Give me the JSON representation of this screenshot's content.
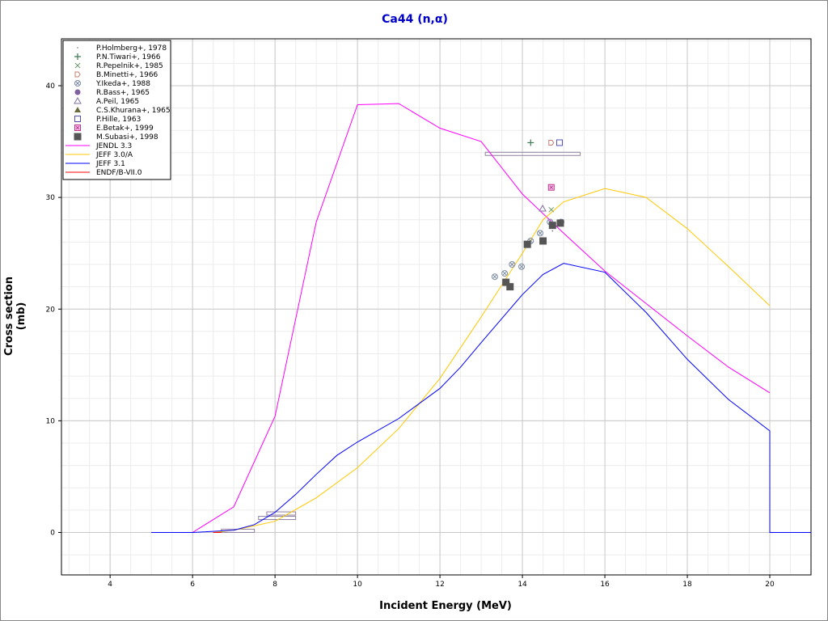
{
  "chart_data": {
    "type": "scatter",
    "title": "Ca44 (n,α)",
    "xlabel": "Incident Energy (MeV)",
    "ylabel": "Cross section (mb)",
    "xlim": [
      2.82,
      21.0
    ],
    "ylim": [
      -3.8,
      44.2
    ],
    "xticks": [
      4,
      6,
      8,
      10,
      12,
      14,
      16,
      18,
      20
    ],
    "yticks": [
      0,
      10,
      20,
      30,
      40
    ],
    "grid": true,
    "legend_position": "top-left",
    "series": [
      {
        "name": "P.Holmberg+, 1978",
        "kind": "points",
        "marker": "dot",
        "color": "#6a6a6a",
        "points": [
          [
            14.73,
            27.0
          ]
        ]
      },
      {
        "name": "P.N.Tiwari+, 1966",
        "kind": "points",
        "marker": "plus",
        "color": "#3a7a50",
        "points": [
          [
            14.2,
            34.9
          ]
        ]
      },
      {
        "name": "R.Pepelnik+, 1985",
        "kind": "points",
        "marker": "x",
        "color": "#6a9a6a",
        "points": [
          [
            14.7,
            28.9
          ]
        ]
      },
      {
        "name": "B.Minetti+, 1966",
        "kind": "points",
        "marker": "pentagon",
        "color": "#c08070",
        "points": [
          [
            14.7,
            34.9
          ]
        ]
      },
      {
        "name": "Y.Ikeda+, 1988",
        "kind": "points",
        "marker": "circlex",
        "color": "#7a8aa0",
        "points": [
          [
            13.33,
            22.9
          ],
          [
            13.57,
            23.2
          ],
          [
            13.75,
            24.0
          ],
          [
            13.98,
            23.8
          ],
          [
            14.2,
            26.1
          ],
          [
            14.43,
            26.8
          ],
          [
            14.67,
            27.8
          ],
          [
            14.94,
            27.8
          ]
        ]
      },
      {
        "name": "R.Bass+, 1965",
        "kind": "points",
        "marker": "filledcircle",
        "color": "#8060a0",
        "points": []
      },
      {
        "name": "A.Peil, 1965",
        "kind": "points",
        "marker": "triangle",
        "color": "#8070a0",
        "points": [
          [
            14.49,
            29.0
          ]
        ]
      },
      {
        "name": "C.S.Khurana+, 1965",
        "kind": "points",
        "marker": "filledtriangle",
        "color": "#6a6a3a",
        "points": []
      },
      {
        "name": "P.Hille, 1963",
        "kind": "points",
        "marker": "square",
        "color": "#5050b0",
        "points": [
          [
            14.9,
            34.9
          ]
        ]
      },
      {
        "name": "E.Betak+, 1999",
        "kind": "points",
        "marker": "squarex",
        "color": "#c03090",
        "points": [
          [
            14.7,
            30.9
          ]
        ]
      },
      {
        "name": "M.Subasi+, 1998",
        "kind": "points",
        "marker": "filledsquare",
        "color": "#555555",
        "points": [
          [
            13.6,
            22.4
          ],
          [
            13.7,
            22.0
          ],
          [
            14.12,
            25.8
          ],
          [
            14.5,
            26.1
          ],
          [
            14.73,
            27.5
          ],
          [
            14.92,
            27.7
          ]
        ]
      },
      {
        "name": "JENDL 3.3",
        "kind": "line",
        "color": "#ff00ff",
        "points": [
          [
            5,
            0
          ],
          [
            6,
            0
          ],
          [
            7,
            2.3
          ],
          [
            8,
            10.4
          ],
          [
            9,
            27.8
          ],
          [
            10,
            38.3
          ],
          [
            11,
            38.4
          ],
          [
            12,
            36.2
          ],
          [
            13,
            35.0
          ],
          [
            14,
            30.3
          ],
          [
            15,
            26.8
          ],
          [
            16,
            23.4
          ],
          [
            17,
            20.5
          ],
          [
            18,
            17.6
          ],
          [
            19,
            14.8
          ],
          [
            20,
            12.5
          ]
        ]
      },
      {
        "name": "JEFF 3.0/A",
        "kind": "line",
        "color": "#ffc800",
        "points": [
          [
            6.5,
            0
          ],
          [
            7,
            0.2
          ],
          [
            8,
            1.0
          ],
          [
            9,
            3.1
          ],
          [
            10,
            5.8
          ],
          [
            11,
            9.3
          ],
          [
            12,
            13.8
          ],
          [
            13,
            19.3
          ],
          [
            14,
            25.0
          ],
          [
            14.5,
            28.0
          ],
          [
            15,
            29.6
          ],
          [
            16,
            30.8
          ],
          [
            17,
            30.0
          ],
          [
            18,
            27.2
          ],
          [
            19,
            23.8
          ],
          [
            20,
            20.3
          ]
        ]
      },
      {
        "name": "JEFF 3.1",
        "kind": "line",
        "color": "#0000ff",
        "points": [
          [
            5,
            0
          ],
          [
            6,
            0
          ],
          [
            7,
            0.2
          ],
          [
            7.5,
            0.7
          ],
          [
            8,
            1.8
          ],
          [
            8.5,
            3.4
          ],
          [
            9,
            5.2
          ],
          [
            9.5,
            6.9
          ],
          [
            10,
            8.1
          ],
          [
            11,
            10.2
          ],
          [
            12,
            12.9
          ],
          [
            12.5,
            14.8
          ],
          [
            13,
            17.0
          ],
          [
            14,
            21.3
          ],
          [
            14.5,
            23.1
          ],
          [
            15,
            24.1
          ],
          [
            16,
            23.3
          ],
          [
            17,
            19.7
          ],
          [
            18,
            15.5
          ],
          [
            19,
            11.9
          ],
          [
            20,
            9.1
          ],
          [
            20,
            0
          ],
          [
            21,
            0
          ]
        ]
      },
      {
        "name": "ENDF/B-VII.0",
        "kind": "line",
        "color": "#ff0000",
        "points": [
          [
            6.5,
            0
          ],
          [
            6.7,
            0
          ]
        ]
      }
    ],
    "energy_range_points": {
      "color": "#9080a0",
      "items": [
        [
          13.1,
          15.4,
          33.9
        ],
        [
          6.7,
          7.5,
          0.15
        ],
        [
          7.6,
          8.5,
          1.3
        ],
        [
          7.8,
          8.5,
          1.7
        ]
      ]
    }
  }
}
